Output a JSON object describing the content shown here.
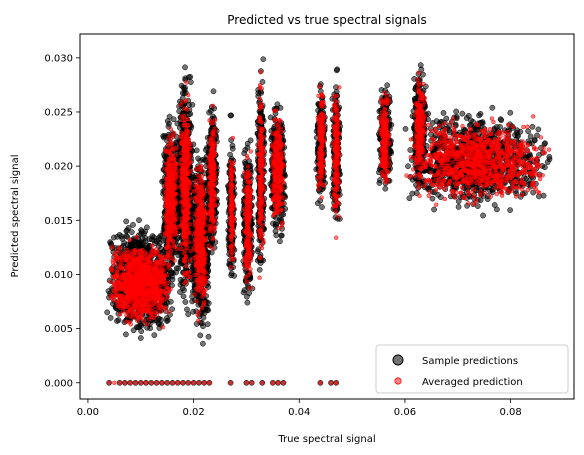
{
  "chart_data": {
    "type": "scatter",
    "title": "Predicted vs true spectral signals",
    "xlabel": "True spectral signal",
    "ylabel": "Predicted spectral signal",
    "xlim": [
      -0.0015,
      0.092
    ],
    "ylim": [
      -0.0015,
      0.0322
    ],
    "xticks": [
      0.0,
      0.02,
      0.04,
      0.06,
      0.08
    ],
    "xtick_labels": [
      "0.00",
      "0.02",
      "0.04",
      "0.06",
      "0.08"
    ],
    "yticks": [
      0.0,
      0.005,
      0.01,
      0.015,
      0.02,
      0.025,
      0.03
    ],
    "ytick_labels": [
      "0.000",
      "0.005",
      "0.010",
      "0.015",
      "0.020",
      "0.025",
      "0.030"
    ],
    "grid": false,
    "legend_position": "lower-right",
    "series": [
      {
        "name": "Sample predictions",
        "color": "#000000",
        "alpha": 0.55,
        "edge": "#000000",
        "clusters": [
          {
            "x": [
              0.0035,
              0.0165
            ],
            "y": [
              0.0035,
              0.0155
            ]
          },
          {
            "x": [
              0.014,
              0.0175
            ],
            "y": [
              0.008,
              0.026
            ]
          },
          {
            "x": [
              0.017,
              0.02
            ],
            "y": [
              0.005,
              0.0305
            ]
          },
          {
            "x": [
              0.0195,
              0.023
            ],
            "y": [
              0.003,
              0.023
            ]
          },
          {
            "x": [
              0.0225,
              0.0245
            ],
            "y": [
              0.01,
              0.028
            ]
          },
          {
            "x": [
              0.0265,
              0.0278
            ],
            "y": [
              0.007,
              0.025
            ]
          },
          {
            "x": [
              0.0293,
              0.0312
            ],
            "y": [
              0.006,
              0.024
            ]
          },
          {
            "x": [
              0.032,
              0.0335
            ],
            "y": [
              0.008,
              0.0305
            ]
          },
          {
            "x": [
              0.0345,
              0.0375
            ],
            "y": [
              0.012,
              0.027
            ]
          },
          {
            "x": [
              0.0432,
              0.045
            ],
            "y": [
              0.015,
              0.029
            ]
          },
          {
            "x": [
              0.0462,
              0.0478
            ],
            "y": [
              0.0125,
              0.03
            ]
          },
          {
            "x": [
              0.055,
              0.0575
            ],
            "y": [
              0.0165,
              0.0285
            ]
          },
          {
            "x": [
              0.0615,
              0.064
            ],
            "y": [
              0.017,
              0.0305
            ]
          },
          {
            "x": [
              0.0595,
              0.088
            ],
            "y": [
              0.015,
              0.026
            ]
          }
        ],
        "zeros_x": [
          0.004,
          0.006,
          0.007,
          0.008,
          0.009,
          0.01,
          0.011,
          0.012,
          0.013,
          0.014,
          0.015,
          0.016,
          0.017,
          0.018,
          0.019,
          0.02,
          0.021,
          0.022,
          0.023,
          0.027,
          0.03,
          0.031,
          0.033,
          0.035,
          0.036,
          0.037,
          0.044,
          0.046,
          0.047
        ]
      },
      {
        "name": "Averaged prediction",
        "color": "#ff0000",
        "alpha": 0.5,
        "edge": "#ff0000",
        "clusters": [
          {
            "x": [
              0.004,
              0.016
            ],
            "y": [
              0.0045,
              0.014
            ]
          },
          {
            "x": [
              0.0145,
              0.017
            ],
            "y": [
              0.009,
              0.025
            ]
          },
          {
            "x": [
              0.0175,
              0.0195
            ],
            "y": [
              0.007,
              0.029
            ]
          },
          {
            "x": [
              0.02,
              0.0225
            ],
            "y": [
              0.005,
              0.022
            ]
          },
          {
            "x": [
              0.0228,
              0.0242
            ],
            "y": [
              0.011,
              0.027
            ]
          },
          {
            "x": [
              0.0268,
              0.0276
            ],
            "y": [
              0.008,
              0.024
            ]
          },
          {
            "x": [
              0.0296,
              0.031
            ],
            "y": [
              0.007,
              0.023
            ]
          },
          {
            "x": [
              0.0322,
              0.0333
            ],
            "y": [
              0.009,
              0.0295
            ]
          },
          {
            "x": [
              0.0348,
              0.0372
            ],
            "y": [
              0.013,
              0.026
            ]
          },
          {
            "x": [
              0.0435,
              0.0448
            ],
            "y": [
              0.016,
              0.028
            ]
          },
          {
            "x": [
              0.0464,
              0.0476
            ],
            "y": [
              0.013,
              0.029
            ]
          },
          {
            "x": [
              0.0553,
              0.0572
            ],
            "y": [
              0.017,
              0.0275
            ]
          },
          {
            "x": [
              0.0618,
              0.0638
            ],
            "y": [
              0.018,
              0.03
            ]
          },
          {
            "x": [
              0.06,
              0.0875
            ],
            "y": [
              0.016,
              0.025
            ]
          }
        ],
        "zeros_x": [
          0.004,
          0.005,
          0.006,
          0.007,
          0.008,
          0.009,
          0.01,
          0.011,
          0.012,
          0.013,
          0.014,
          0.015,
          0.016,
          0.017,
          0.018,
          0.019,
          0.02,
          0.021,
          0.022,
          0.023,
          0.027,
          0.03,
          0.031,
          0.033,
          0.035,
          0.036,
          0.037,
          0.044,
          0.046,
          0.047
        ]
      }
    ]
  }
}
